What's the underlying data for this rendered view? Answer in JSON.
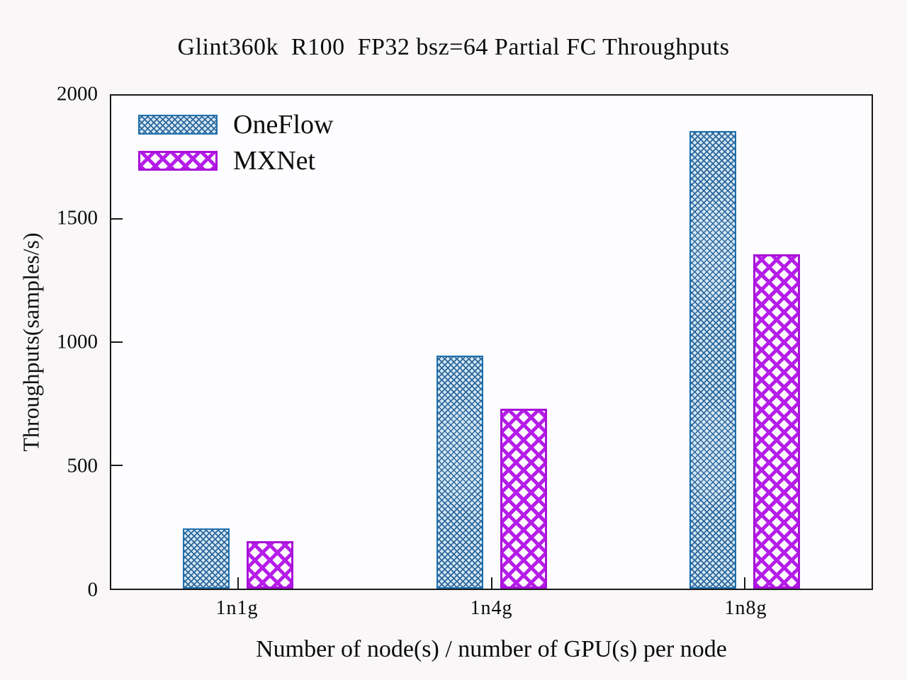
{
  "chart_data": {
    "type": "bar",
    "title": "Glint360k  R100  FP32 bsz=64 Partial FC Throughputs",
    "categories": [
      "1n1g",
      "1n4g",
      "1n8g"
    ],
    "series": [
      {
        "name": "OneFlow",
        "values": [
          245,
          945,
          1856
        ]
      },
      {
        "name": "MXNet",
        "values": [
          194,
          730,
          1356
        ]
      }
    ],
    "xlabel": "Number of node(s) / number of GPU(s) per node",
    "ylabel": "Throughputs(samples/s)",
    "ylim": [
      0,
      2000
    ],
    "yticks": [
      0,
      500,
      1000,
      1500,
      2000
    ],
    "legend_position": "top-left",
    "grid": false
  },
  "colors": {
    "oneflow_border": "#1e6fad",
    "oneflow_hatch": "#2d6699",
    "oneflow_fill": "#d3e7f5",
    "mxnet_border": "#a812d8",
    "mxnet_hatch": "#b51de8",
    "mxnet_fill": "#fefaff",
    "axis": "#1a1a1a",
    "background": "#f9f7f8"
  }
}
